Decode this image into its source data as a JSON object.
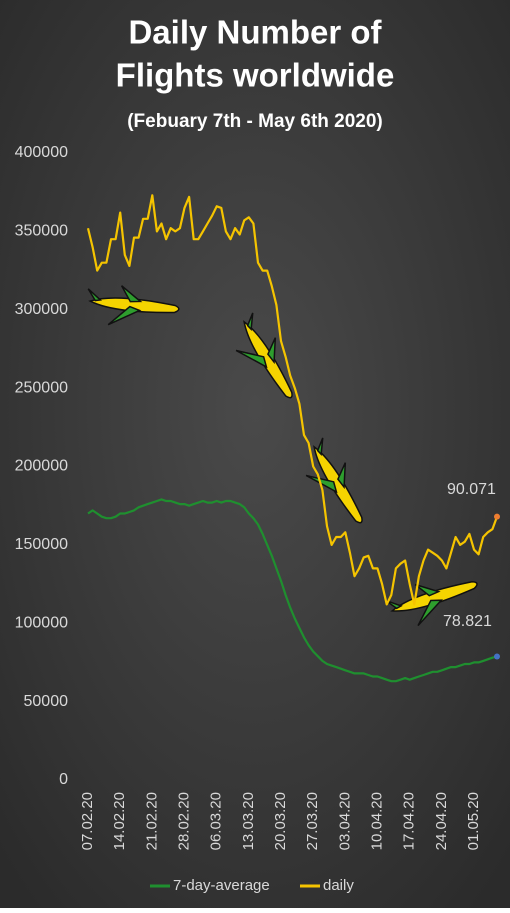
{
  "chart_data": {
    "type": "line",
    "title": [
      "Daily Number of",
      "Flights worldwide"
    ],
    "subtitle": "(Febuary 7th - May 6th 2020)",
    "categories": [
      "07.02.20",
      null,
      null,
      null,
      null,
      null,
      null,
      "14.02.20",
      null,
      null,
      null,
      null,
      null,
      null,
      "21.02.20",
      null,
      null,
      null,
      null,
      null,
      null,
      "28.02.20",
      null,
      null,
      null,
      null,
      null,
      null,
      "06.03.20",
      null,
      null,
      null,
      null,
      null,
      null,
      "13.03.20",
      null,
      null,
      null,
      null,
      null,
      null,
      "20.03.20",
      null,
      null,
      null,
      null,
      null,
      null,
      "27.03.20",
      null,
      null,
      null,
      null,
      null,
      null,
      "03.04.20",
      null,
      null,
      null,
      null,
      null,
      null,
      "10.04.20",
      null,
      null,
      null,
      null,
      null,
      null,
      "17.04.20",
      null,
      null,
      null,
      null,
      null,
      null,
      "24.04.20",
      null,
      null,
      null,
      null,
      null,
      null,
      "01.05.20",
      null,
      null,
      null,
      null,
      null
    ],
    "series": [
      {
        "name": "7-day-average",
        "color": "#1f8f2f",
        "end_color": "#4472c4",
        "values": [
          170000,
          172000,
          170000,
          168000,
          167000,
          167000,
          168000,
          170000,
          170000,
          171000,
          172000,
          174000,
          175000,
          176000,
          177000,
          178000,
          179000,
          178000,
          178000,
          177000,
          176000,
          176000,
          175000,
          176000,
          177000,
          178000,
          177000,
          177000,
          178000,
          177000,
          178000,
          178000,
          177000,
          176000,
          174000,
          170000,
          167000,
          163000,
          157000,
          150000,
          143000,
          135000,
          127000,
          118000,
          110000,
          103000,
          97000,
          91000,
          86000,
          82000,
          79000,
          76000,
          74000,
          73000,
          72000,
          71000,
          70000,
          69000,
          68000,
          68000,
          68000,
          67000,
          66000,
          66000,
          65000,
          64000,
          63000,
          63000,
          64000,
          65000,
          64000,
          65000,
          66000,
          67000,
          68000,
          69000,
          69000,
          70000,
          71000,
          72000,
          72000,
          73000,
          74000,
          74000,
          75000,
          75000,
          76000,
          77000,
          78000,
          78821
        ]
      },
      {
        "name": "daily",
        "color": "#f5c400",
        "end_color": "#ed7d31",
        "values": [
          352000,
          340000,
          325000,
          330000,
          330000,
          345000,
          345000,
          362000,
          335000,
          328000,
          346000,
          346000,
          358000,
          358000,
          373000,
          350000,
          355000,
          345000,
          352000,
          350000,
          352000,
          365000,
          372000,
          345000,
          345000,
          350000,
          355000,
          360000,
          366000,
          365000,
          350000,
          345000,
          352000,
          348000,
          357000,
          359000,
          355000,
          330000,
          325000,
          325000,
          315000,
          303000,
          280000,
          270000,
          258000,
          250000,
          240000,
          220000,
          215000,
          200000,
          195000,
          185000,
          162000,
          150000,
          155000,
          155000,
          158000,
          145000,
          130000,
          135000,
          142000,
          143000,
          135000,
          135000,
          125000,
          112000,
          118000,
          135000,
          138000,
          140000,
          125000,
          112000,
          130000,
          140000,
          147000,
          145000,
          143000,
          140000,
          135000,
          145000,
          155000,
          150000,
          152000,
          157000,
          147000,
          144000,
          155000,
          158000,
          160000,
          168000
        ]
      }
    ],
    "annotations": [
      "90.071",
      "78.821"
    ],
    "ylim": [
      0,
      400000
    ],
    "yticks": [
      0,
      50000,
      100000,
      150000,
      200000,
      250000,
      300000,
      350000,
      400000
    ],
    "grid": false
  }
}
